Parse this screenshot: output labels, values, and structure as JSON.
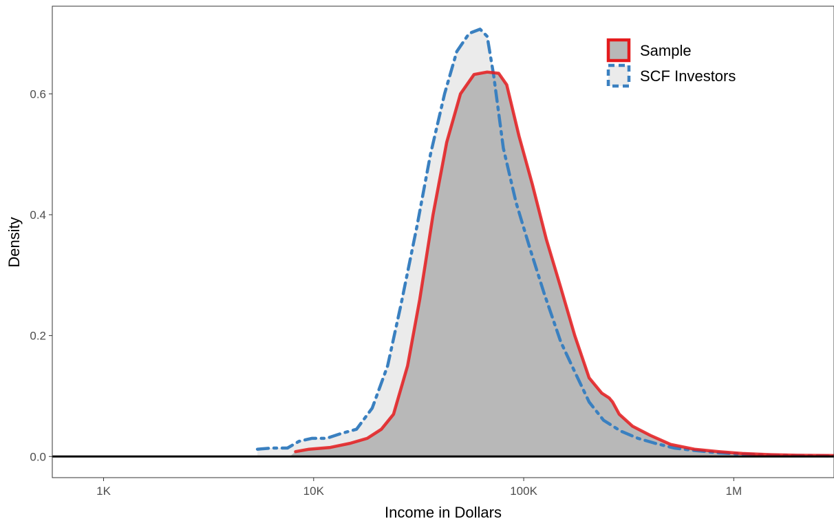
{
  "chart_data": {
    "type": "area",
    "title": "",
    "xlabel": "Income in Dollars",
    "ylabel": "Density",
    "x_scale": "log10",
    "xlim": [
      570,
      3000000
    ],
    "ylim": [
      -0.035,
      0.745
    ],
    "x_ticks": [
      {
        "value": 1000,
        "label": "1K"
      },
      {
        "value": 10000,
        "label": "10K"
      },
      {
        "value": 100000,
        "label": "100K"
      },
      {
        "value": 1000000,
        "label": "1M"
      }
    ],
    "y_ticks": [
      {
        "value": 0.0,
        "label": "0.0"
      },
      {
        "value": 0.2,
        "label": "0.2"
      },
      {
        "value": 0.4,
        "label": "0.4"
      },
      {
        "value": 0.6,
        "label": "0.6"
      }
    ],
    "grid": false,
    "legend_position": "top-right",
    "series": [
      {
        "name": "SCF Investors",
        "line_color": "#3a80c0",
        "fill_color": "#ebebeb",
        "line_style": "dashed",
        "points": [
          [
            5400,
            0.0
          ],
          [
            5400,
            0.012
          ],
          [
            6300,
            0.014
          ],
          [
            7500,
            0.014
          ],
          [
            8500,
            0.025
          ],
          [
            9800,
            0.03
          ],
          [
            11500,
            0.03
          ],
          [
            13500,
            0.038
          ],
          [
            16000,
            0.045
          ],
          [
            19000,
            0.08
          ],
          [
            22500,
            0.15
          ],
          [
            26000,
            0.25
          ],
          [
            31000,
            0.38
          ],
          [
            36000,
            0.5
          ],
          [
            42000,
            0.6
          ],
          [
            48000,
            0.67
          ],
          [
            55000,
            0.7
          ],
          [
            62000,
            0.707
          ],
          [
            67000,
            0.695
          ],
          [
            72000,
            0.63
          ],
          [
            80000,
            0.51
          ],
          [
            92000,
            0.42
          ],
          [
            108000,
            0.34
          ],
          [
            125000,
            0.27
          ],
          [
            150000,
            0.19
          ],
          [
            175000,
            0.14
          ],
          [
            205000,
            0.09
          ],
          [
            240000,
            0.06
          ],
          [
            290000,
            0.042
          ],
          [
            350000,
            0.03
          ],
          [
            420000,
            0.022
          ],
          [
            520000,
            0.014
          ],
          [
            650000,
            0.01
          ],
          [
            850000,
            0.006
          ],
          [
            1100000,
            0.004
          ],
          [
            1500000,
            0.002
          ],
          [
            2000000,
            0.0015
          ],
          [
            3000000,
            0.001
          ],
          [
            3000000,
            0.0
          ]
        ]
      },
      {
        "name": "Sample",
        "line_color": "#e41a1c",
        "fill_color": "#b8b8b8",
        "line_style": "solid",
        "points": [
          [
            7700,
            0.0
          ],
          [
            8200,
            0.008
          ],
          [
            9500,
            0.012
          ],
          [
            12000,
            0.015
          ],
          [
            15000,
            0.022
          ],
          [
            18000,
            0.03
          ],
          [
            21000,
            0.045
          ],
          [
            24000,
            0.07
          ],
          [
            28000,
            0.15
          ],
          [
            32000,
            0.26
          ],
          [
            37000,
            0.4
          ],
          [
            43000,
            0.52
          ],
          [
            50000,
            0.6
          ],
          [
            58000,
            0.632
          ],
          [
            67000,
            0.636
          ],
          [
            76000,
            0.634
          ],
          [
            83000,
            0.615
          ],
          [
            95000,
            0.53
          ],
          [
            110000,
            0.45
          ],
          [
            128000,
            0.36
          ],
          [
            150000,
            0.28
          ],
          [
            175000,
            0.2
          ],
          [
            205000,
            0.13
          ],
          [
            235000,
            0.105
          ],
          [
            255000,
            0.097
          ],
          [
            265000,
            0.09
          ],
          [
            285000,
            0.07
          ],
          [
            330000,
            0.05
          ],
          [
            400000,
            0.035
          ],
          [
            500000,
            0.02
          ],
          [
            650000,
            0.012
          ],
          [
            850000,
            0.008
          ],
          [
            1100000,
            0.005
          ],
          [
            1500000,
            0.003
          ],
          [
            2000000,
            0.002
          ],
          [
            3000000,
            0.0015
          ],
          [
            3000000,
            0.0
          ]
        ]
      }
    ],
    "legend": [
      {
        "label": "Sample",
        "line_color": "#e41a1c",
        "fill_color": "#b8b8b8",
        "line_style": "solid"
      },
      {
        "label": "SCF Investors",
        "line_color": "#3a80c0",
        "fill_color": "#ebebeb",
        "line_style": "dashed"
      }
    ],
    "reference_line": {
      "y": 0.0,
      "color": "#000000"
    }
  }
}
